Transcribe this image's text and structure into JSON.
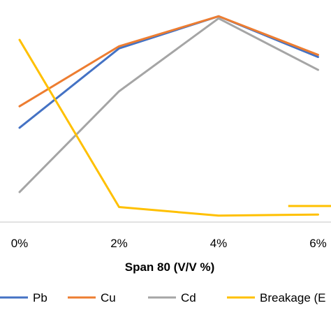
{
  "chart_data": {
    "type": "line",
    "categories": [
      "0%",
      "2%",
      "4%",
      "6%"
    ],
    "xlabel": "Span 80 (V/V %)",
    "ylim": [
      0,
      100
    ],
    "grid": false,
    "legend_position": "bottom",
    "series": [
      {
        "name": "Pb",
        "color": "#4472C4",
        "values": [
          44,
          81,
          96,
          77
        ]
      },
      {
        "name": "Cu",
        "color": "#ED7D31",
        "values": [
          54,
          82,
          96,
          78
        ]
      },
      {
        "name": "Cd",
        "color": "#A5A5A5",
        "values": [
          14,
          61,
          95,
          71
        ]
      },
      {
        "name": "Breakage (E",
        "color": "#FFC000",
        "values": [
          85,
          7,
          3,
          3.5
        ]
      }
    ],
    "stray_segment": {
      "color": "#FFC000",
      "x": [
        2.7,
        3.5
      ],
      "y": [
        7.5,
        7.5
      ]
    }
  }
}
